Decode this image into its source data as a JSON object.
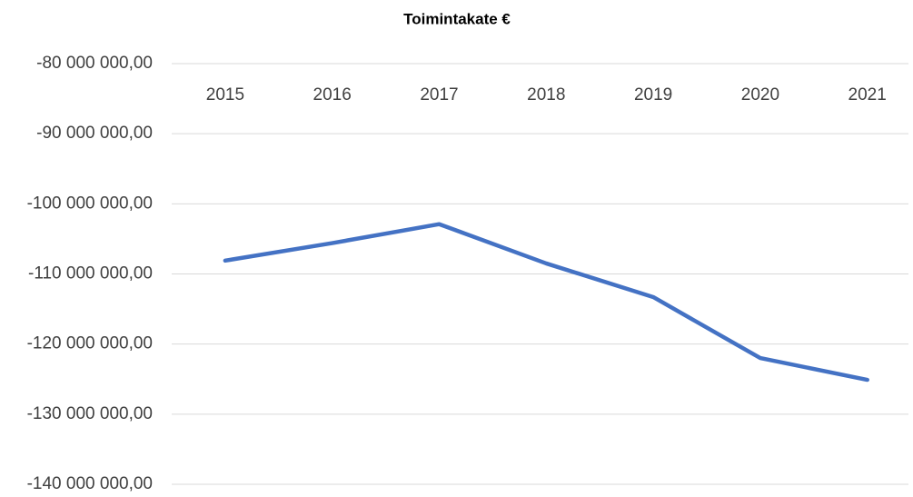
{
  "chart_data": {
    "type": "line",
    "title": "Toimintakate €",
    "categories": [
      "2015",
      "2016",
      "2017",
      "2018",
      "2019",
      "2020",
      "2021"
    ],
    "series": [
      {
        "name": "Toimintakate €",
        "color": "#4472c4",
        "values": [
          -108100000,
          -105600000,
          -102900000,
          -108500000,
          -113300000,
          -122000000,
          -125100000
        ]
      }
    ],
    "ylim": [
      -140000000,
      -80000000
    ],
    "yticks": [
      {
        "value": -140000000,
        "label": "-140 000 000,00"
      },
      {
        "value": -130000000,
        "label": "-130 000 000,00"
      },
      {
        "value": -120000000,
        "label": "-120 000 000,00"
      },
      {
        "value": -110000000,
        "label": "-110 000 000,00"
      },
      {
        "value": -100000000,
        "label": "-100 000 000,00"
      },
      {
        "value": -90000000,
        "label": "-90 000 000,00"
      },
      {
        "value": -80000000,
        "label": "-80 000 000,00"
      }
    ],
    "grid": true
  }
}
